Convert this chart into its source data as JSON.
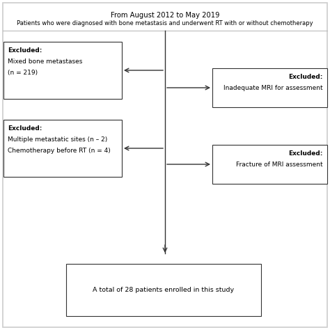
{
  "title_line1": "From August 2012 to May 2019",
  "title_line2": "Patients who were diagnosed with bone metastasis and underwent RT with or without chemotherapy",
  "box_top_line1": "Excluded:",
  "box_top_line2": "Mixed bone metastases",
  "box_top_line3": "(n = 219)",
  "box_mid_line1": "Excluded:",
  "box_mid_line2": "Multiple metastatic sites (n – 2)",
  "box_mid_line3": "Chemotherapy before RT (n = 4)",
  "box_right1_line1": "Excluded:",
  "box_right1_line2": "Inadequate MRI for assessment",
  "box_right2_line1": "Excluded:",
  "box_right2_line2": "Fracture of MRI assessment",
  "box_bottom_text": "A total of 28 patients enrolled in this study",
  "bg_color": "#ffffff",
  "outer_border_color": "#cccccc",
  "box_edge_color": "#333333",
  "text_color": "#000000",
  "line_color": "#333333",
  "title_fontsize": 7.0,
  "body_fontsize": 6.5
}
